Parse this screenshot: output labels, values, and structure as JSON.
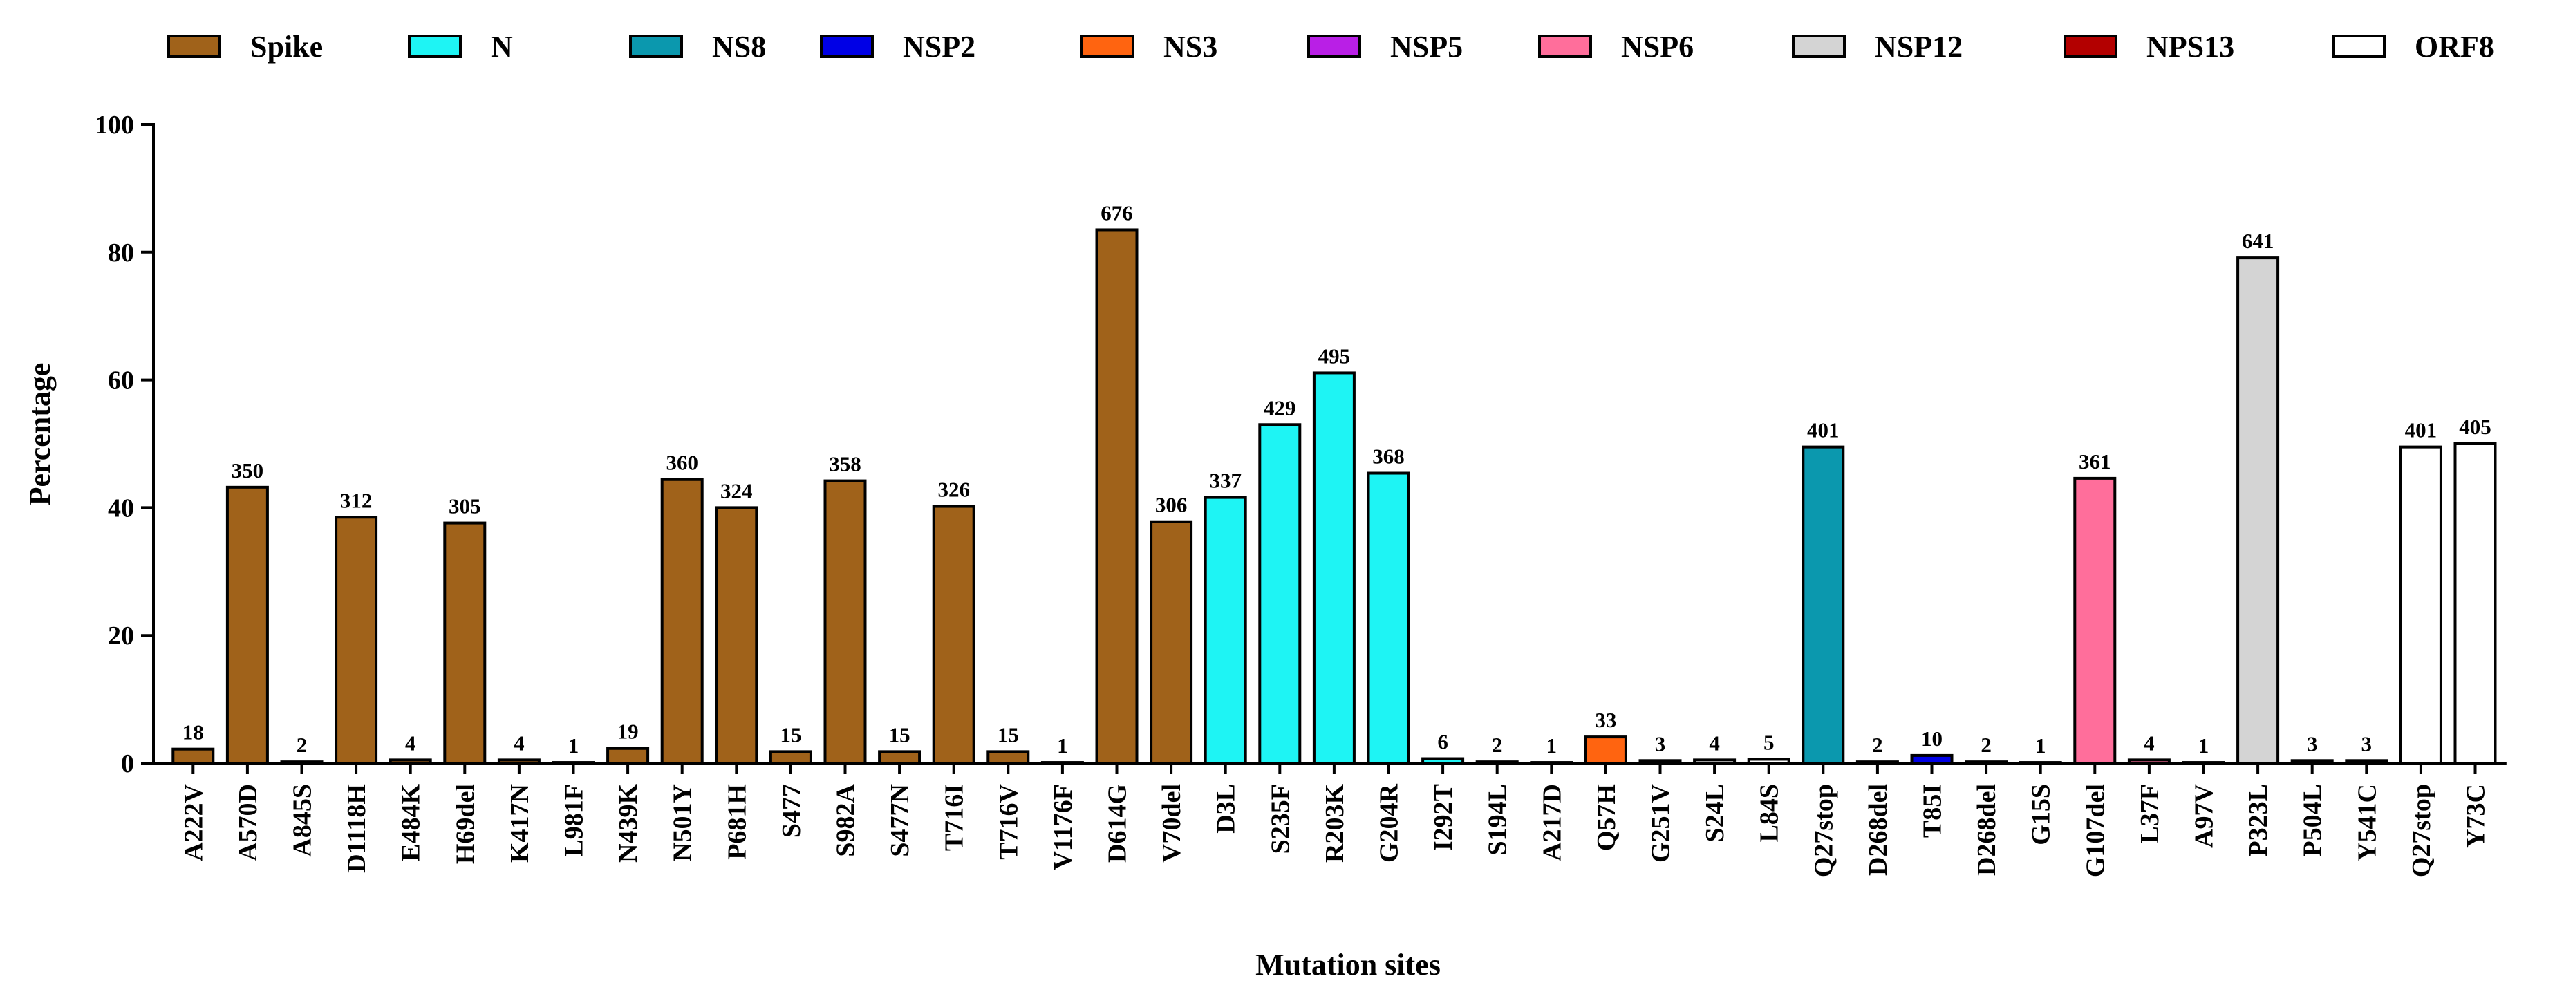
{
  "chart_data": {
    "type": "bar",
    "xlabel": "Mutation sites",
    "ylabel": "Percentage",
    "ylim": [
      0,
      100
    ],
    "yticks": [
      0,
      20,
      40,
      60,
      80,
      100
    ],
    "legend_position": "top",
    "legend": [
      {
        "name": "Spike",
        "color": "#A0621A"
      },
      {
        "name": "N",
        "color": "#1EF4F4"
      },
      {
        "name": "NS8",
        "color": "#0B98AE"
      },
      {
        "name": "NSP2",
        "color": "#0000E6"
      },
      {
        "name": "NS3",
        "color": "#FF6410"
      },
      {
        "name": "NSP5",
        "color": "#B91FE6"
      },
      {
        "name": "NSP6",
        "color": "#FF6E9B"
      },
      {
        "name": "NSP12",
        "color": "#D4D4D4"
      },
      {
        "name": "NPS13",
        "color": "#B30000"
      },
      {
        "name": "ORF8",
        "color": "#FFFFFF"
      }
    ],
    "bars": [
      {
        "category": "A222V",
        "group": "Spike",
        "value": 2.2,
        "label": "18"
      },
      {
        "category": "A570D",
        "group": "Spike",
        "value": 43.2,
        "label": "350"
      },
      {
        "category": "A845S",
        "group": "Spike",
        "value": 0.2,
        "label": "2"
      },
      {
        "category": "D1118H",
        "group": "Spike",
        "value": 38.5,
        "label": "312"
      },
      {
        "category": "E484K",
        "group": "Spike",
        "value": 0.5,
        "label": "4"
      },
      {
        "category": "H69del",
        "group": "Spike",
        "value": 37.6,
        "label": "305"
      },
      {
        "category": "K417N",
        "group": "Spike",
        "value": 0.5,
        "label": "4"
      },
      {
        "category": "L981F",
        "group": "Spike",
        "value": 0.1,
        "label": "1"
      },
      {
        "category": "N439K",
        "group": "Spike",
        "value": 2.3,
        "label": "19"
      },
      {
        "category": "N501Y",
        "group": "Spike",
        "value": 44.4,
        "label": "360"
      },
      {
        "category": "P681H",
        "group": "Spike",
        "value": 40.0,
        "label": "324"
      },
      {
        "category": "S477",
        "group": "Spike",
        "value": 1.8,
        "label": "15"
      },
      {
        "category": "S982A",
        "group": "Spike",
        "value": 44.2,
        "label": "358"
      },
      {
        "category": "S477N",
        "group": "Spike",
        "value": 1.8,
        "label": "15"
      },
      {
        "category": "T716I",
        "group": "Spike",
        "value": 40.2,
        "label": "326"
      },
      {
        "category": "T716V",
        "group": "Spike",
        "value": 1.8,
        "label": "15"
      },
      {
        "category": "V1176F",
        "group": "Spike",
        "value": 0.1,
        "label": "1"
      },
      {
        "category": "D614G",
        "group": "Spike",
        "value": 83.5,
        "label": "676"
      },
      {
        "category": "V70del",
        "group": "Spike",
        "value": 37.8,
        "label": "306"
      },
      {
        "category": "D3L",
        "group": "N",
        "value": 41.6,
        "label": "337"
      },
      {
        "category": "S235F",
        "group": "N",
        "value": 53.0,
        "label": "429"
      },
      {
        "category": "R203K",
        "group": "N",
        "value": 61.1,
        "label": "495"
      },
      {
        "category": "G204R",
        "group": "N",
        "value": 45.4,
        "label": "368"
      },
      {
        "category": "I292T",
        "group": "N",
        "value": 0.7,
        "label": "6"
      },
      {
        "category": "S194L",
        "group": "N",
        "value": 0.2,
        "label": "2"
      },
      {
        "category": "A217D",
        "group": "N",
        "value": 0.1,
        "label": "1"
      },
      {
        "category": "Q57H",
        "group": "NS3",
        "value": 4.1,
        "label": "33"
      },
      {
        "category": "G251V",
        "group": "NS3",
        "value": 0.4,
        "label": "3"
      },
      {
        "category": "S24L",
        "group": "ORF8",
        "value": 0.5,
        "label": "4"
      },
      {
        "category": "L84S",
        "group": "ORF8",
        "value": 0.6,
        "label": "5"
      },
      {
        "category": "Q27stop",
        "group": "NS8",
        "value": 49.5,
        "label": "401"
      },
      {
        "category": "D268del",
        "group": "NSP2",
        "value": 0.2,
        "label": "2"
      },
      {
        "category": "T85I",
        "group": "NSP2",
        "value": 1.2,
        "label": "10"
      },
      {
        "category": "D268del",
        "group": "NSP2",
        "value": 0.2,
        "label": "2"
      },
      {
        "category": "G15S",
        "group": "NSP5",
        "value": 0.1,
        "label": "1"
      },
      {
        "category": "G107del",
        "group": "NSP6",
        "value": 44.6,
        "label": "361"
      },
      {
        "category": "L37F",
        "group": "NSP6",
        "value": 0.5,
        "label": "4"
      },
      {
        "category": "A97V",
        "group": "NSP12",
        "value": 0.1,
        "label": "1"
      },
      {
        "category": "P323L",
        "group": "NSP12",
        "value": 79.1,
        "label": "641"
      },
      {
        "category": "P504L",
        "group": "NPS13",
        "value": 0.4,
        "label": "3"
      },
      {
        "category": "Y541C",
        "group": "NPS13",
        "value": 0.4,
        "label": "3"
      },
      {
        "category": "Q27stop",
        "group": "ORF8",
        "value": 49.5,
        "label": "401"
      },
      {
        "category": "Y73C",
        "group": "ORF8",
        "value": 50.0,
        "label": "405"
      }
    ]
  }
}
